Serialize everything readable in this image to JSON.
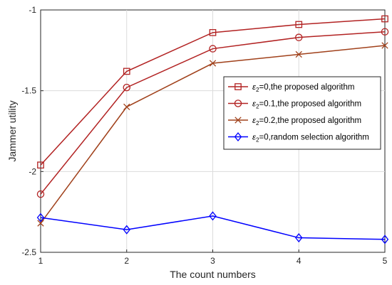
{
  "chart_data": {
    "type": "line",
    "xlabel": "The count numbers",
    "ylabel": "Jammer utility",
    "xlim": [
      1,
      5
    ],
    "ylim": [
      -2.5,
      -1
    ],
    "x": [
      1,
      2,
      3,
      4,
      5
    ],
    "x_ticks": [
      "1",
      "2",
      "3",
      "4",
      "5"
    ],
    "y_ticks": [
      "-2.5",
      "-2",
      "-1.5",
      "-1"
    ],
    "y_tick_values": [
      -2.5,
      -2,
      -1.5,
      -1
    ],
    "grid": true,
    "legend_position": "right",
    "series": [
      {
        "name": "ε2=0,the proposed algorithm",
        "legend_symbol": "ε",
        "legend_sub": "2",
        "legend_rest": "=0,the proposed algorithm",
        "color": "#b22222",
        "marker": "square",
        "values": [
          -1.96,
          -1.38,
          -1.14,
          -1.09,
          -1.055
        ]
      },
      {
        "name": "ε2=0.1,the proposed algorithm",
        "legend_symbol": "ε",
        "legend_sub": "2",
        "legend_rest": "=0.1,the proposed algorithm",
        "color": "#b22222",
        "marker": "circle",
        "values": [
          -2.14,
          -1.48,
          -1.24,
          -1.17,
          -1.135
        ]
      },
      {
        "name": "ε2=0.2,the proposed algorithm",
        "legend_symbol": "ε",
        "legend_sub": "2",
        "legend_rest": "=0.2,the proposed algorithm",
        "color": "#a0401a",
        "marker": "x",
        "values": [
          -2.32,
          -1.6,
          -1.33,
          -1.275,
          -1.22
        ]
      },
      {
        "name": "ε2=0,random selection algorithm",
        "legend_symbol": "ε",
        "legend_sub": "2",
        "legend_rest": "=0,random selection algorithm",
        "color": "#0000ff",
        "marker": "diamond",
        "values": [
          -2.285,
          -2.36,
          -2.275,
          -2.41,
          -2.42
        ]
      }
    ]
  }
}
